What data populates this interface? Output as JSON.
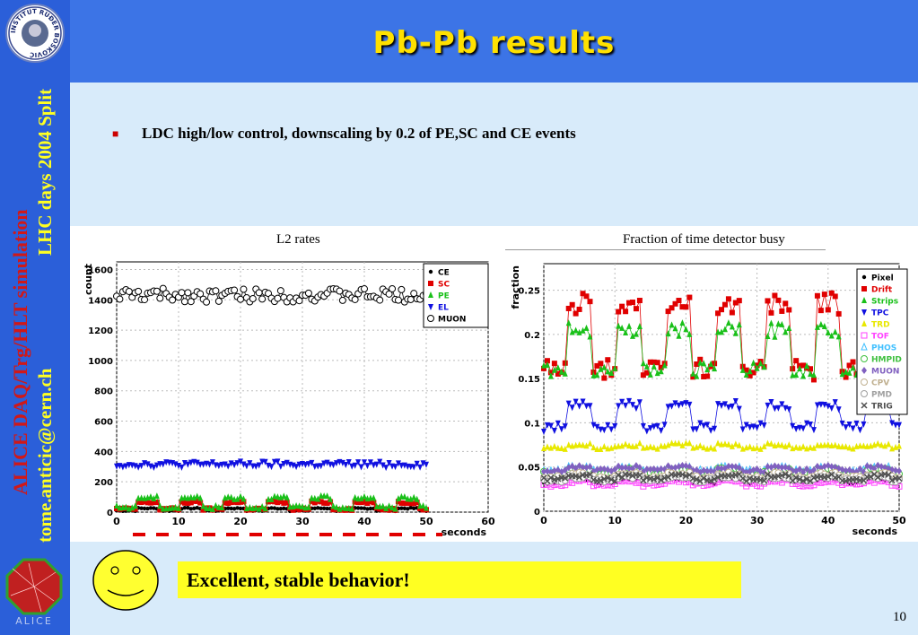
{
  "slide": {
    "title": "Pb-Pb results",
    "bullet": "LDC high/low control, downscaling by 0.2 of PE,SC and CE events",
    "side_red": "ALICE DAQ/Trg/HLT simulation",
    "side_yellow": "LHC days 2004 Split",
    "side_email": "tome.anticic@cern.ch",
    "logo_text": "INSTITUT RUĐER BOŠKOVIĆ",
    "alice_text": "ALICE",
    "conclusion": "Excellent, stable behavior!",
    "page_number": "10",
    "colors": {
      "header": "#3c74e6",
      "sidebar": "#2b5fd9",
      "title": "#ffe100",
      "band": "#d8ebfa",
      "highlight": "#ffff22"
    }
  },
  "chart_data": [
    {
      "type": "line",
      "caption": "L2 rates",
      "xlabel": "seconds",
      "ylabel": "count",
      "xlim": [
        0,
        60
      ],
      "ylim": [
        0,
        1650
      ],
      "xticks": [
        0,
        10,
        20,
        30,
        40,
        50,
        60
      ],
      "yticks": [
        0,
        200,
        400,
        600,
        800,
        1000,
        1200,
        1400,
        1600
      ],
      "grid": true,
      "legend_position": "top-right",
      "series": [
        {
          "name": "CE",
          "color": "#000000",
          "marker": "dot",
          "base": 10,
          "amp": 15,
          "noise": 4
        },
        {
          "name": "SC",
          "color": "#e00000",
          "marker": "square",
          "base": 20,
          "amp": 45,
          "noise": 8
        },
        {
          "name": "PE",
          "color": "#19c019",
          "marker": "triangle-up",
          "base": 30,
          "amp": 65,
          "noise": 12
        },
        {
          "name": "EL",
          "color": "#1010e0",
          "marker": "triangle-down",
          "base": 315,
          "amp": 0,
          "noise": 20
        },
        {
          "name": "MUON",
          "color": "#000000",
          "marker": "circle-open",
          "base": 1430,
          "amp": 0,
          "noise": 45
        }
      ]
    },
    {
      "type": "line",
      "caption": "Fraction of  time detector busy",
      "xlabel": "seconds",
      "ylabel": "fraction",
      "xlim": [
        0,
        50
      ],
      "ylim": [
        0,
        0.28
      ],
      "xticks": [
        0,
        10,
        20,
        30,
        40,
        50
      ],
      "yticks": [
        0,
        0.05,
        0.1,
        0.15,
        0.2,
        0.25
      ],
      "grid": true,
      "legend_position": "top-right",
      "series": [
        {
          "name": "Pixel",
          "color": "#000000",
          "marker": "dot",
          "base": 0.033,
          "amp": 0.004,
          "noise": 0.002
        },
        {
          "name": "Drift",
          "color": "#e00000",
          "marker": "square",
          "base": 0.16,
          "amp": 0.075,
          "noise": 0.012
        },
        {
          "name": "Strips",
          "color": "#19c019",
          "marker": "triangle-up",
          "base": 0.16,
          "amp": 0.045,
          "noise": 0.008
        },
        {
          "name": "TPC",
          "color": "#1010e0",
          "marker": "triangle-down",
          "base": 0.095,
          "amp": 0.025,
          "noise": 0.005
        },
        {
          "name": "TRD",
          "color": "#e8e800",
          "marker": "triangle-up",
          "base": 0.072,
          "amp": 0.003,
          "noise": 0.002
        },
        {
          "name": "TOF",
          "color": "#ff40ff",
          "marker": "square-open",
          "base": 0.03,
          "amp": 0.004,
          "noise": 0.002
        },
        {
          "name": "PHOS",
          "color": "#40c0ff",
          "marker": "triangle-open",
          "base": 0.045,
          "amp": 0.004,
          "noise": 0.002
        },
        {
          "name": "HMPID",
          "color": "#40c040",
          "marker": "circle-open",
          "base": 0.043,
          "amp": 0.004,
          "noise": 0.002
        },
        {
          "name": "MUON",
          "color": "#8060c0",
          "marker": "diamond",
          "base": 0.046,
          "amp": 0.004,
          "noise": 0.002
        },
        {
          "name": "CPV",
          "color": "#c0b090",
          "marker": "circle-open",
          "base": 0.038,
          "amp": 0.004,
          "noise": 0.002
        },
        {
          "name": "PMD",
          "color": "#a0a0a0",
          "marker": "circle-open",
          "base": 0.035,
          "amp": 0.004,
          "noise": 0.002
        },
        {
          "name": "TRIG",
          "color": "#505050",
          "marker": "cross",
          "base": 0.036,
          "amp": 0.004,
          "noise": 0.002
        }
      ]
    }
  ]
}
